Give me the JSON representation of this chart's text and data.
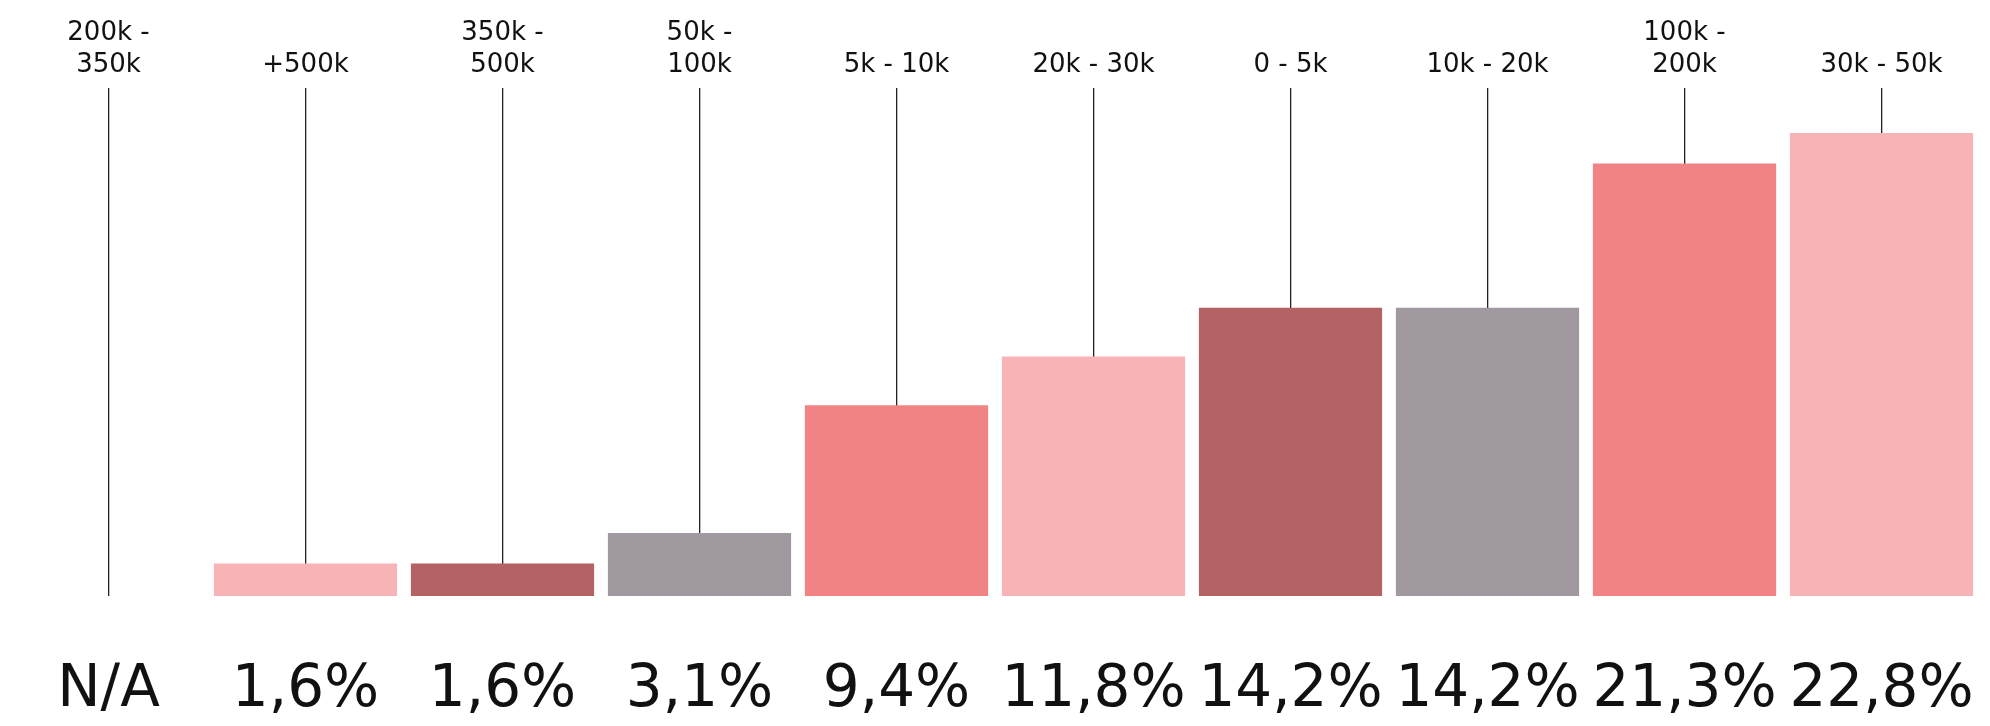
{
  "chart_data": {
    "type": "bar",
    "categories": [
      "200k - 350k",
      "+500k",
      "350k - 500k",
      "50k - 100k",
      "5k - 10k",
      "20k - 30k",
      "0 - 5k",
      "10k - 20k",
      "100k - 200k",
      "30k - 50k"
    ],
    "values": [
      null,
      1.6,
      1.6,
      3.1,
      9.4,
      11.8,
      14.2,
      14.2,
      21.3,
      22.8
    ],
    "value_labels": [
      "N/A",
      "1,6%",
      "1,6%",
      "3,1%",
      "9,4%",
      "11,8%",
      "14,2%",
      "14,2%",
      "21,3%",
      "22,8%"
    ],
    "colors": [
      "#f28385",
      "#f7b3b5",
      "#b46263",
      "#a0999f",
      "#f28385",
      "#f7b3b5",
      "#b46263",
      "#a0999f",
      "#f28385",
      "#f7b3b5"
    ],
    "legend": false,
    "grid": "x"
  }
}
